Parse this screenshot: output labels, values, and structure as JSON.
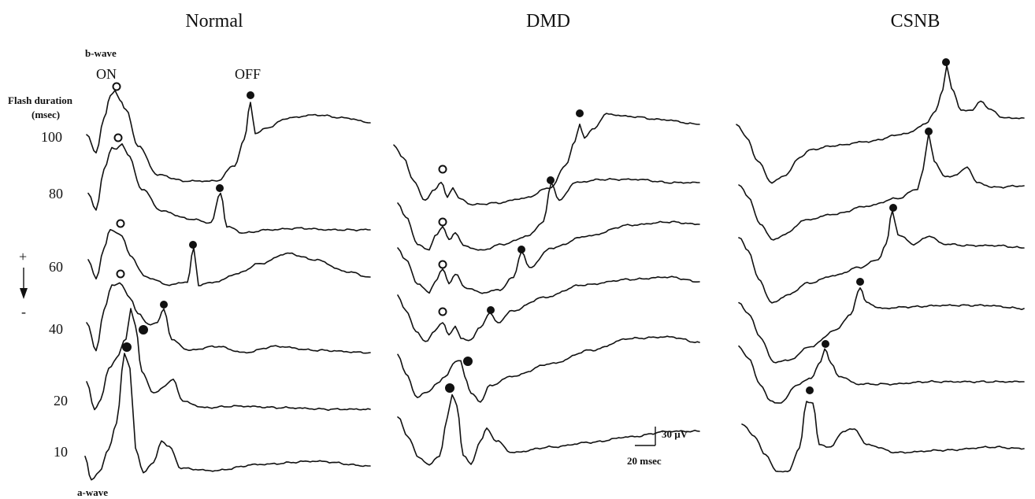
{
  "chart_data": {
    "type": "line",
    "panels": [
      {
        "title": "Normal"
      },
      {
        "title": "DMD"
      },
      {
        "title": "CSNB"
      }
    ],
    "flash_duration_label": "Flash duration",
    "flash_duration_unit": "(msec)",
    "durations": [
      "100",
      "80",
      "60",
      "40",
      "20",
      "10"
    ],
    "labels": {
      "b_wave": "b-wave",
      "on": "ON",
      "off": "OFF",
      "a_wave": "a-wave",
      "plus": "+",
      "minus": "-"
    },
    "scale_bar": {
      "amplitude": "30 µV",
      "time": "20 msec"
    }
  }
}
